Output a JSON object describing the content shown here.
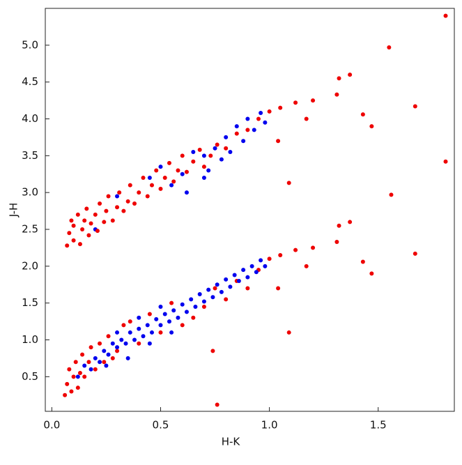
{
  "chart_data": {
    "type": "scatter",
    "xlabel": "H-K",
    "ylabel": "J-H",
    "xlim": [
      -0.03,
      1.85
    ],
    "ylim": [
      0.03,
      5.5
    ],
    "xticks": [
      {
        "value": 0,
        "label": "0.0"
      },
      0.5,
      {
        "value": 1,
        "label": "1.0"
      },
      1.5
    ],
    "yticks": [
      0.5,
      {
        "value": 1,
        "label": "1.0"
      },
      1.5,
      {
        "value": 2,
        "label": "2.0"
      },
      2.5,
      {
        "value": 3,
        "label": "3.0"
      },
      3.5,
      {
        "value": 4,
        "label": "4.0"
      },
      4.5,
      {
        "value": 5,
        "label": "5.0"
      }
    ],
    "series": [
      {
        "color": "#0000ee",
        "x": [
          0.2,
          0.3,
          0.45,
          0.5,
          0.55,
          0.6,
          0.65,
          0.7,
          0.72,
          0.75,
          0.78,
          0.8,
          0.82,
          0.85,
          0.88,
          0.9,
          0.93,
          0.96,
          0.98,
          0.62,
          0.7
        ],
        "values": [
          2.5,
          2.95,
          3.2,
          3.35,
          3.1,
          3.25,
          3.55,
          3.5,
          3.3,
          3.6,
          3.45,
          3.75,
          3.55,
          3.9,
          3.7,
          4.0,
          3.85,
          4.08,
          3.95,
          3.0,
          3.2
        ]
      },
      {
        "color": "#ee0000",
        "x": [
          0.07,
          0.08,
          0.09,
          0.1,
          0.1,
          0.12,
          0.13,
          0.14,
          0.15,
          0.16,
          0.17,
          0.18,
          0.2,
          0.21,
          0.22,
          0.24,
          0.25,
          0.26,
          0.28,
          0.3,
          0.31,
          0.33,
          0.35,
          0.36,
          0.38,
          0.4,
          0.42,
          0.44,
          0.46,
          0.48,
          0.5,
          0.52,
          0.54,
          0.56,
          0.58,
          0.6,
          0.62,
          0.65,
          0.68,
          0.7,
          0.73,
          0.76,
          0.8,
          0.85,
          0.9,
          0.95,
          1.0,
          1.05,
          1.12,
          1.2,
          1.04,
          1.17,
          1.81,
          1.55,
          1.32,
          1.37,
          1.31,
          1.43,
          1.47,
          1.67,
          1.81,
          1.56,
          1.09
        ],
        "values": [
          2.28,
          2.45,
          2.62,
          2.35,
          2.55,
          2.7,
          2.3,
          2.5,
          2.62,
          2.78,
          2.42,
          2.58,
          2.7,
          2.48,
          2.85,
          2.6,
          2.75,
          2.95,
          2.62,
          2.8,
          3.0,
          2.75,
          2.88,
          3.1,
          2.85,
          3.0,
          3.2,
          2.95,
          3.1,
          3.3,
          3.05,
          3.2,
          3.4,
          3.15,
          3.3,
          3.5,
          3.28,
          3.42,
          3.58,
          3.35,
          3.5,
          3.65,
          3.6,
          3.8,
          3.85,
          4.0,
          4.1,
          4.15,
          4.22,
          4.25,
          3.7,
          4.0,
          5.4,
          4.97,
          4.55,
          4.6,
          4.33,
          4.06,
          3.9,
          4.17,
          3.42,
          2.97,
          3.13
        ]
      },
      {
        "color": "#ee0000",
        "x": [
          0.06,
          0.07,
          0.08,
          0.09,
          0.1,
          0.11,
          0.12,
          0.13,
          0.14,
          0.15,
          0.17,
          0.18,
          0.2,
          0.22,
          0.24,
          0.26,
          0.28,
          0.3,
          0.33,
          0.36,
          0.4,
          0.45,
          0.5,
          0.55,
          0.6,
          0.65,
          0.7,
          0.75,
          0.8,
          0.85,
          0.9,
          0.95,
          1.0,
          1.05,
          1.12,
          1.2,
          1.04,
          1.17,
          0.76,
          1.09,
          0.74,
          1.32,
          1.37,
          1.31,
          1.43,
          1.47,
          1.67
        ],
        "values": [
          0.25,
          0.4,
          0.6,
          0.3,
          0.5,
          0.7,
          0.35,
          0.55,
          0.8,
          0.5,
          0.7,
          0.9,
          0.6,
          0.95,
          0.7,
          1.05,
          0.75,
          0.85,
          1.2,
          1.25,
          0.95,
          1.35,
          1.1,
          1.5,
          1.2,
          1.3,
          1.45,
          1.7,
          1.55,
          1.8,
          1.7,
          1.95,
          2.1,
          2.15,
          2.22,
          2.25,
          1.7,
          2.0,
          0.12,
          1.1,
          0.85,
          2.55,
          2.6,
          2.33,
          2.06,
          1.9,
          2.17
        ]
      },
      {
        "color": "#0000ee",
        "x": [
          0.12,
          0.15,
          0.18,
          0.2,
          0.22,
          0.24,
          0.26,
          0.28,
          0.3,
          0.32,
          0.34,
          0.36,
          0.38,
          0.4,
          0.42,
          0.44,
          0.46,
          0.48,
          0.5,
          0.52,
          0.54,
          0.56,
          0.58,
          0.6,
          0.62,
          0.64,
          0.66,
          0.68,
          0.7,
          0.72,
          0.74,
          0.76,
          0.78,
          0.8,
          0.82,
          0.84,
          0.86,
          0.88,
          0.9,
          0.92,
          0.94,
          0.96,
          0.98,
          0.35,
          0.45,
          0.55,
          0.3,
          0.4,
          0.5,
          0.25
        ],
        "values": [
          0.5,
          0.65,
          0.6,
          0.75,
          0.7,
          0.85,
          0.8,
          0.95,
          0.9,
          1.0,
          0.95,
          1.1,
          1.0,
          1.15,
          1.05,
          1.2,
          1.1,
          1.28,
          1.2,
          1.35,
          1.25,
          1.4,
          1.3,
          1.48,
          1.38,
          1.55,
          1.45,
          1.62,
          1.52,
          1.68,
          1.58,
          1.75,
          1.65,
          1.82,
          1.72,
          1.88,
          1.8,
          1.95,
          1.85,
          2.0,
          1.92,
          2.08,
          2.0,
          0.75,
          0.95,
          1.1,
          1.1,
          1.3,
          1.45,
          0.65
        ]
      }
    ]
  }
}
